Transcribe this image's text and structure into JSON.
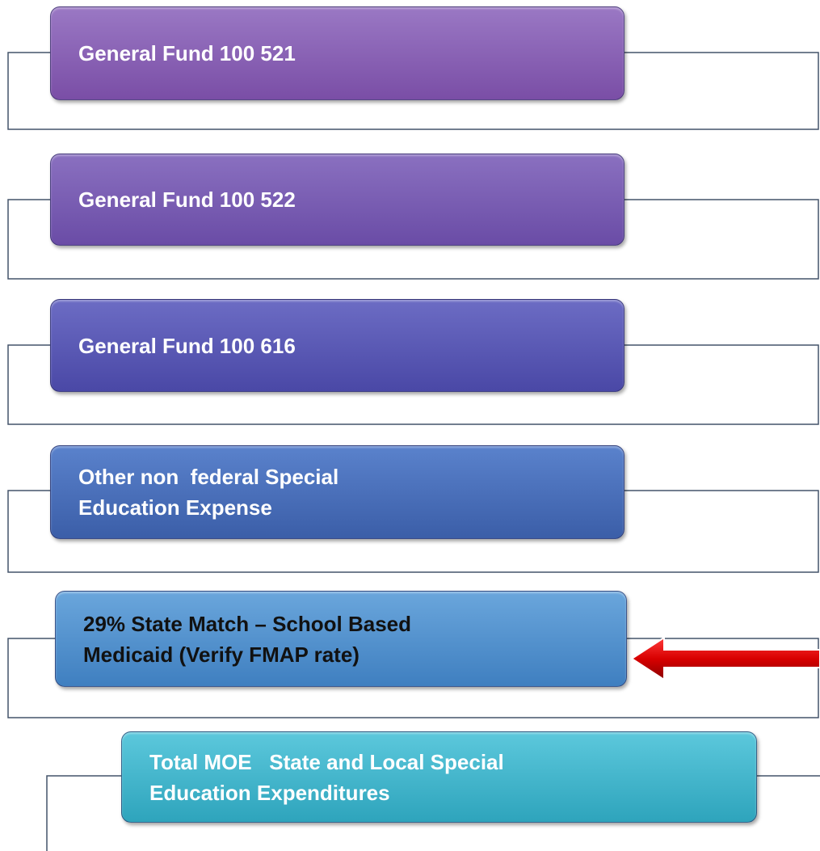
{
  "boxes": [
    {
      "lines": [
        "General Fund 100 521"
      ]
    },
    {
      "lines": [
        "General Fund 100 522"
      ]
    },
    {
      "lines": [
        "General Fund 100 616"
      ]
    },
    {
      "lines": [
        "Other non  federal Special",
        "Education Expense"
      ]
    },
    {
      "lines": [
        "29% State Match – School Based",
        "Medicaid (Verify FMAP rate)"
      ]
    },
    {
      "lines": [
        "Total MOE   State and Local Special",
        "Education Expenditures"
      ]
    }
  ]
}
